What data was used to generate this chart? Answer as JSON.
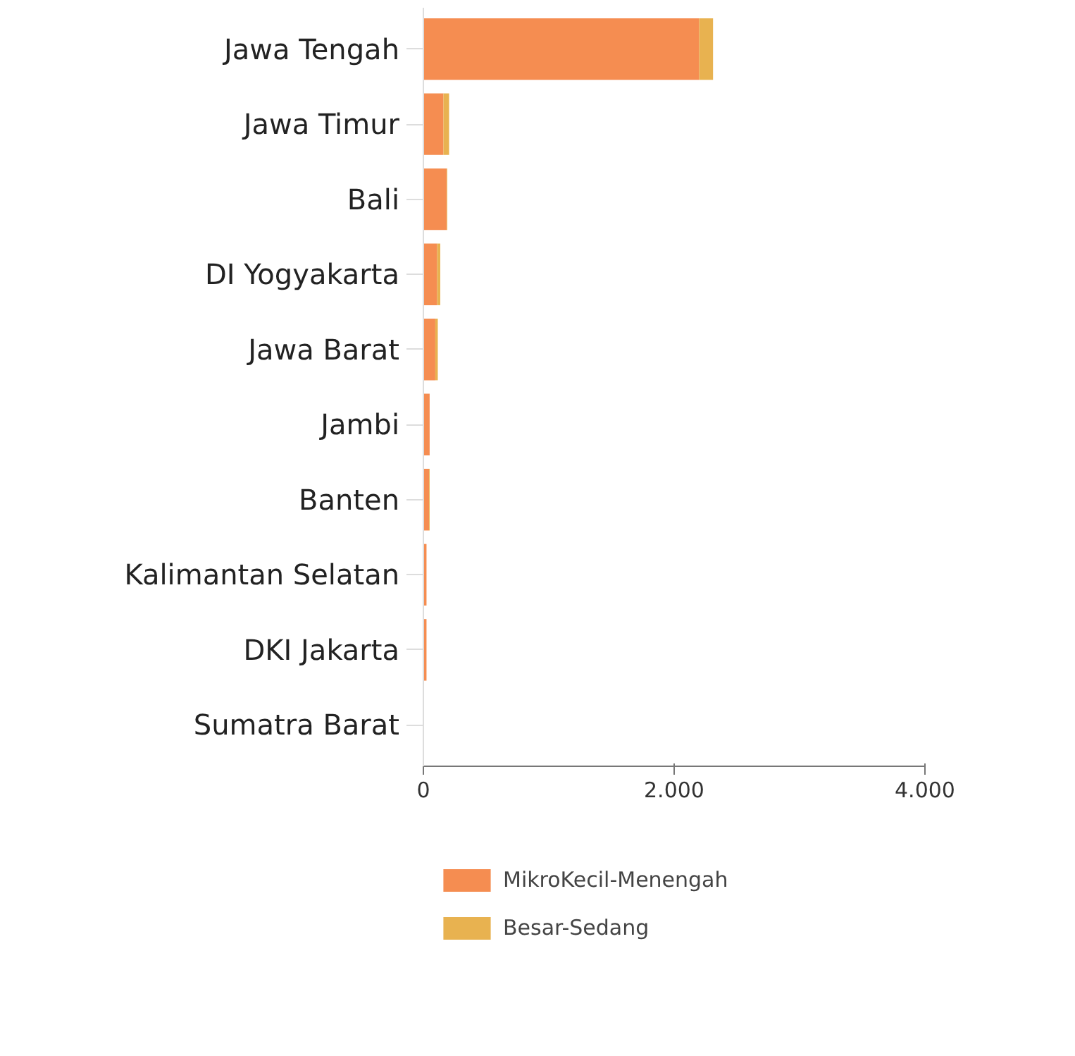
{
  "chart_data": {
    "type": "bar",
    "orientation": "horizontal",
    "stacked": true,
    "categories": [
      "Jawa Tengah",
      "Jawa Timur",
      "Bali",
      "DI Yogyakarta",
      "Jawa Barat",
      "Jambi",
      "Banten",
      "Kalimantan Selatan",
      "DKI Jakarta",
      "Sumatra Barat"
    ],
    "series": [
      {
        "name": "MikroKecil-Menengah",
        "color": "#f58d51",
        "values": [
          2200,
          160,
          185,
          110,
          95,
          50,
          45,
          25,
          25,
          0
        ]
      },
      {
        "name": "Besar-Sedang",
        "color": "#e8b250",
        "values": [
          110,
          45,
          5,
          25,
          20,
          0,
          5,
          0,
          0,
          0
        ]
      }
    ],
    "xlim": [
      0,
      4000
    ],
    "xticks": [
      {
        "value": 0,
        "label": "0"
      },
      {
        "value": 2000,
        "label": "2.000"
      },
      {
        "value": 4000,
        "label": "4.000"
      }
    ],
    "grid": false,
    "legend": "bottom"
  }
}
